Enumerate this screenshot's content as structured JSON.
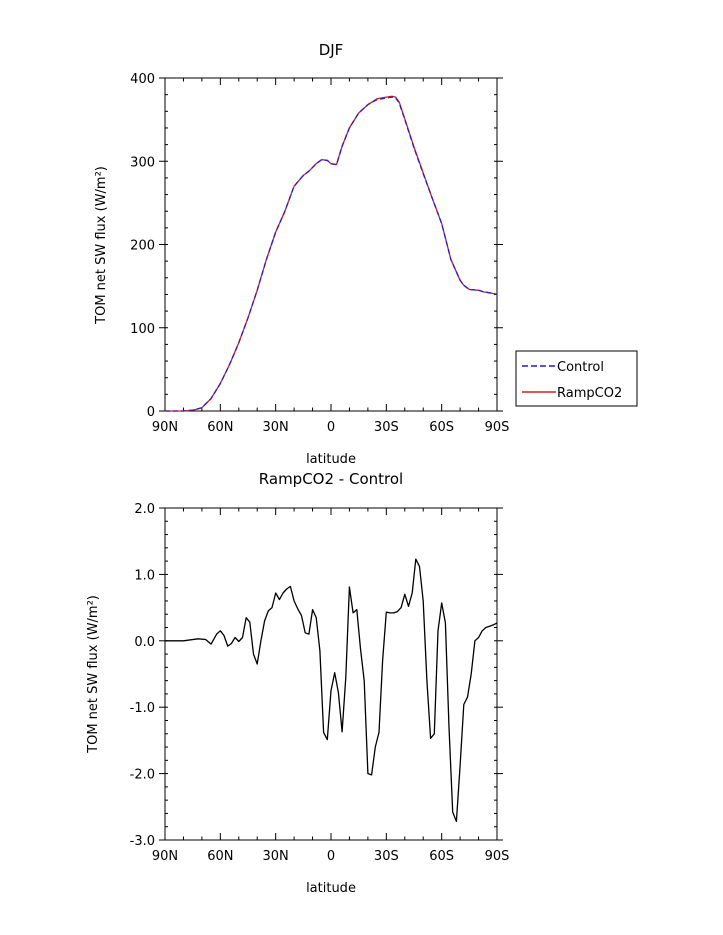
{
  "chart_data": [
    {
      "type": "line",
      "title": "DJF",
      "xlabel": "latitude",
      "ylabel": "TOM net SW flux (W/m²)",
      "xlim": [
        90,
        -90
      ],
      "ylim": [
        0,
        400
      ],
      "x_tick_values": [
        90,
        60,
        30,
        0,
        -30,
        -60,
        -90
      ],
      "x_tick_labels": [
        "90N",
        "60N",
        "30N",
        "0",
        "30S",
        "60S",
        "90S"
      ],
      "y_tick_values": [
        0,
        100,
        200,
        300,
        400
      ],
      "y_tick_labels": [
        "0",
        "100",
        "200",
        "300",
        "400"
      ],
      "x": [
        90,
        85,
        80,
        75,
        70,
        65,
        60,
        55,
        50,
        45,
        40,
        35,
        30,
        25,
        20,
        15,
        12,
        8,
        5,
        2,
        0,
        -3,
        -6,
        -10,
        -15,
        -20,
        -25,
        -30,
        -33,
        -35,
        -37,
        -40,
        -45,
        -50,
        -55,
        -60,
        -65,
        -70,
        -72,
        -75,
        -80,
        -83,
        -86,
        -90
      ],
      "series": [
        {
          "name": "Control",
          "color": "#1f1fd1",
          "dash": true,
          "values": [
            0,
            0,
            0,
            1,
            4,
            15,
            33,
            56,
            82,
            112,
            145,
            182,
            215,
            240,
            270,
            283,
            288,
            297,
            302,
            301,
            297,
            296,
            318,
            340,
            358,
            368,
            374,
            376,
            377,
            376,
            370,
            350,
            316,
            285,
            255,
            225,
            182,
            157,
            151,
            146,
            145,
            143,
            142,
            140
          ]
        },
        {
          "name": "RampCO2",
          "color": "#d11f1f",
          "dash": false,
          "values": [
            0,
            0,
            0,
            1,
            4,
            15,
            33,
            56,
            82,
            112,
            145,
            182,
            215,
            240,
            270,
            283,
            288,
            297,
            302,
            301,
            297,
            296,
            318,
            340,
            358,
            368,
            375,
            377,
            378,
            377,
            371,
            351,
            317,
            286,
            255,
            225,
            182,
            157,
            151,
            146,
            145,
            143,
            142,
            140
          ]
        }
      ],
      "legend": "right"
    },
    {
      "type": "line",
      "title": "RampCO2 - Control",
      "xlabel": "latitude",
      "ylabel": "TOM net SW flux (W/m²)",
      "xlim": [
        90,
        -90
      ],
      "ylim": [
        -3,
        2
      ],
      "x_tick_values": [
        90,
        60,
        30,
        0,
        -30,
        -60,
        -90
      ],
      "x_tick_labels": [
        "90N",
        "60N",
        "30N",
        "0",
        "30S",
        "60S",
        "90S"
      ],
      "y_tick_values": [
        2,
        1,
        0,
        -1,
        -2,
        -3
      ],
      "y_tick_labels": [
        "2.0",
        "1.0",
        "0.0",
        "-1.0",
        "-2.0",
        "-3.0"
      ],
      "x": [
        90,
        80,
        72,
        68,
        65,
        62,
        60,
        58,
        56,
        54,
        52,
        50,
        48,
        46,
        44,
        42,
        40,
        38,
        36,
        34,
        32,
        30,
        28,
        26,
        24,
        22,
        20,
        18,
        16,
        14,
        12,
        10,
        8,
        6,
        4,
        2,
        0,
        -2,
        -4,
        -6,
        -8,
        -10,
        -12,
        -14,
        -16,
        -18,
        -20,
        -22,
        -24,
        -26,
        -28,
        -30,
        -32,
        -34,
        -36,
        -38,
        -40,
        -42,
        -44,
        -46,
        -48,
        -50,
        -52,
        -54,
        -56,
        -58,
        -60,
        -62,
        -64,
        -66,
        -68,
        -70,
        -72,
        -74,
        -76,
        -78,
        -80,
        -82,
        -84,
        -86,
        -88,
        -90
      ],
      "series": [
        {
          "name": "",
          "color": "#000000",
          "values": [
            0.0,
            0.0,
            0.03,
            0.02,
            -0.05,
            0.1,
            0.15,
            0.08,
            -0.08,
            -0.04,
            0.05,
            -0.01,
            0.05,
            0.35,
            0.28,
            -0.2,
            -0.35,
            0.0,
            0.3,
            0.45,
            0.5,
            0.72,
            0.62,
            0.72,
            0.78,
            0.82,
            0.6,
            0.48,
            0.38,
            0.12,
            0.1,
            0.47,
            0.35,
            -0.15,
            -1.38,
            -1.49,
            -0.75,
            -0.48,
            -0.78,
            -1.37,
            -0.55,
            0.81,
            0.42,
            0.47,
            -0.12,
            -0.6,
            -2.0,
            -2.02,
            -1.6,
            -1.38,
            -0.3,
            0.43,
            0.42,
            0.42,
            0.44,
            0.5,
            0.7,
            0.52,
            0.72,
            1.23,
            1.12,
            0.6,
            -0.6,
            -1.47,
            -1.4,
            0.15,
            0.57,
            0.27,
            -1.3,
            -2.58,
            -2.72,
            -1.88,
            -0.96,
            -0.85,
            -0.5,
            0.0,
            0.05,
            0.15,
            0.2,
            0.22,
            0.24,
            0.27
          ]
        }
      ]
    }
  ]
}
